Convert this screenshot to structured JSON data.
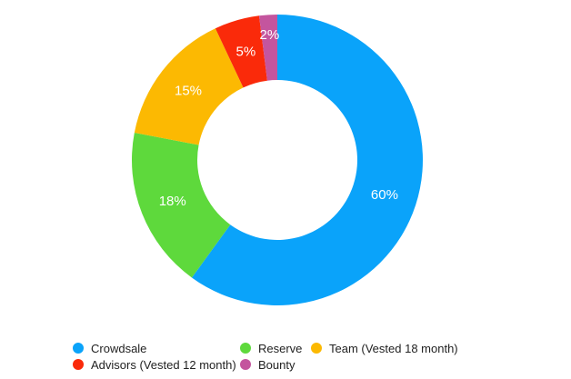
{
  "chart_data": {
    "type": "pie",
    "title": "",
    "donut": true,
    "categories": [
      "Crowdsale",
      "Reserve",
      "Team (Vested 18 month)",
      "Advisors (Vested 12 month)",
      "Bounty"
    ],
    "values": [
      60,
      18,
      15,
      5,
      2
    ],
    "value_labels": [
      "60%",
      "18%",
      "15%",
      "5%",
      "2%"
    ],
    "colors": [
      "#0AA3FA",
      "#5ED93C",
      "#FCB902",
      "#FA2A0A",
      "#C4559E"
    ],
    "legend_position": "bottom",
    "start_direction": "clockwise-from-top"
  },
  "legend": {
    "items": [
      {
        "label": "Crowdsale",
        "color": "#0AA3FA"
      },
      {
        "label": "Reserve",
        "color": "#5ED93C"
      },
      {
        "label": "Team (Vested 18 month)",
        "color": "#FCB902"
      },
      {
        "label": "Advisors (Vested 12 month)",
        "color": "#FA2A0A"
      },
      {
        "label": "Bounty",
        "color": "#C4559E"
      }
    ]
  }
}
